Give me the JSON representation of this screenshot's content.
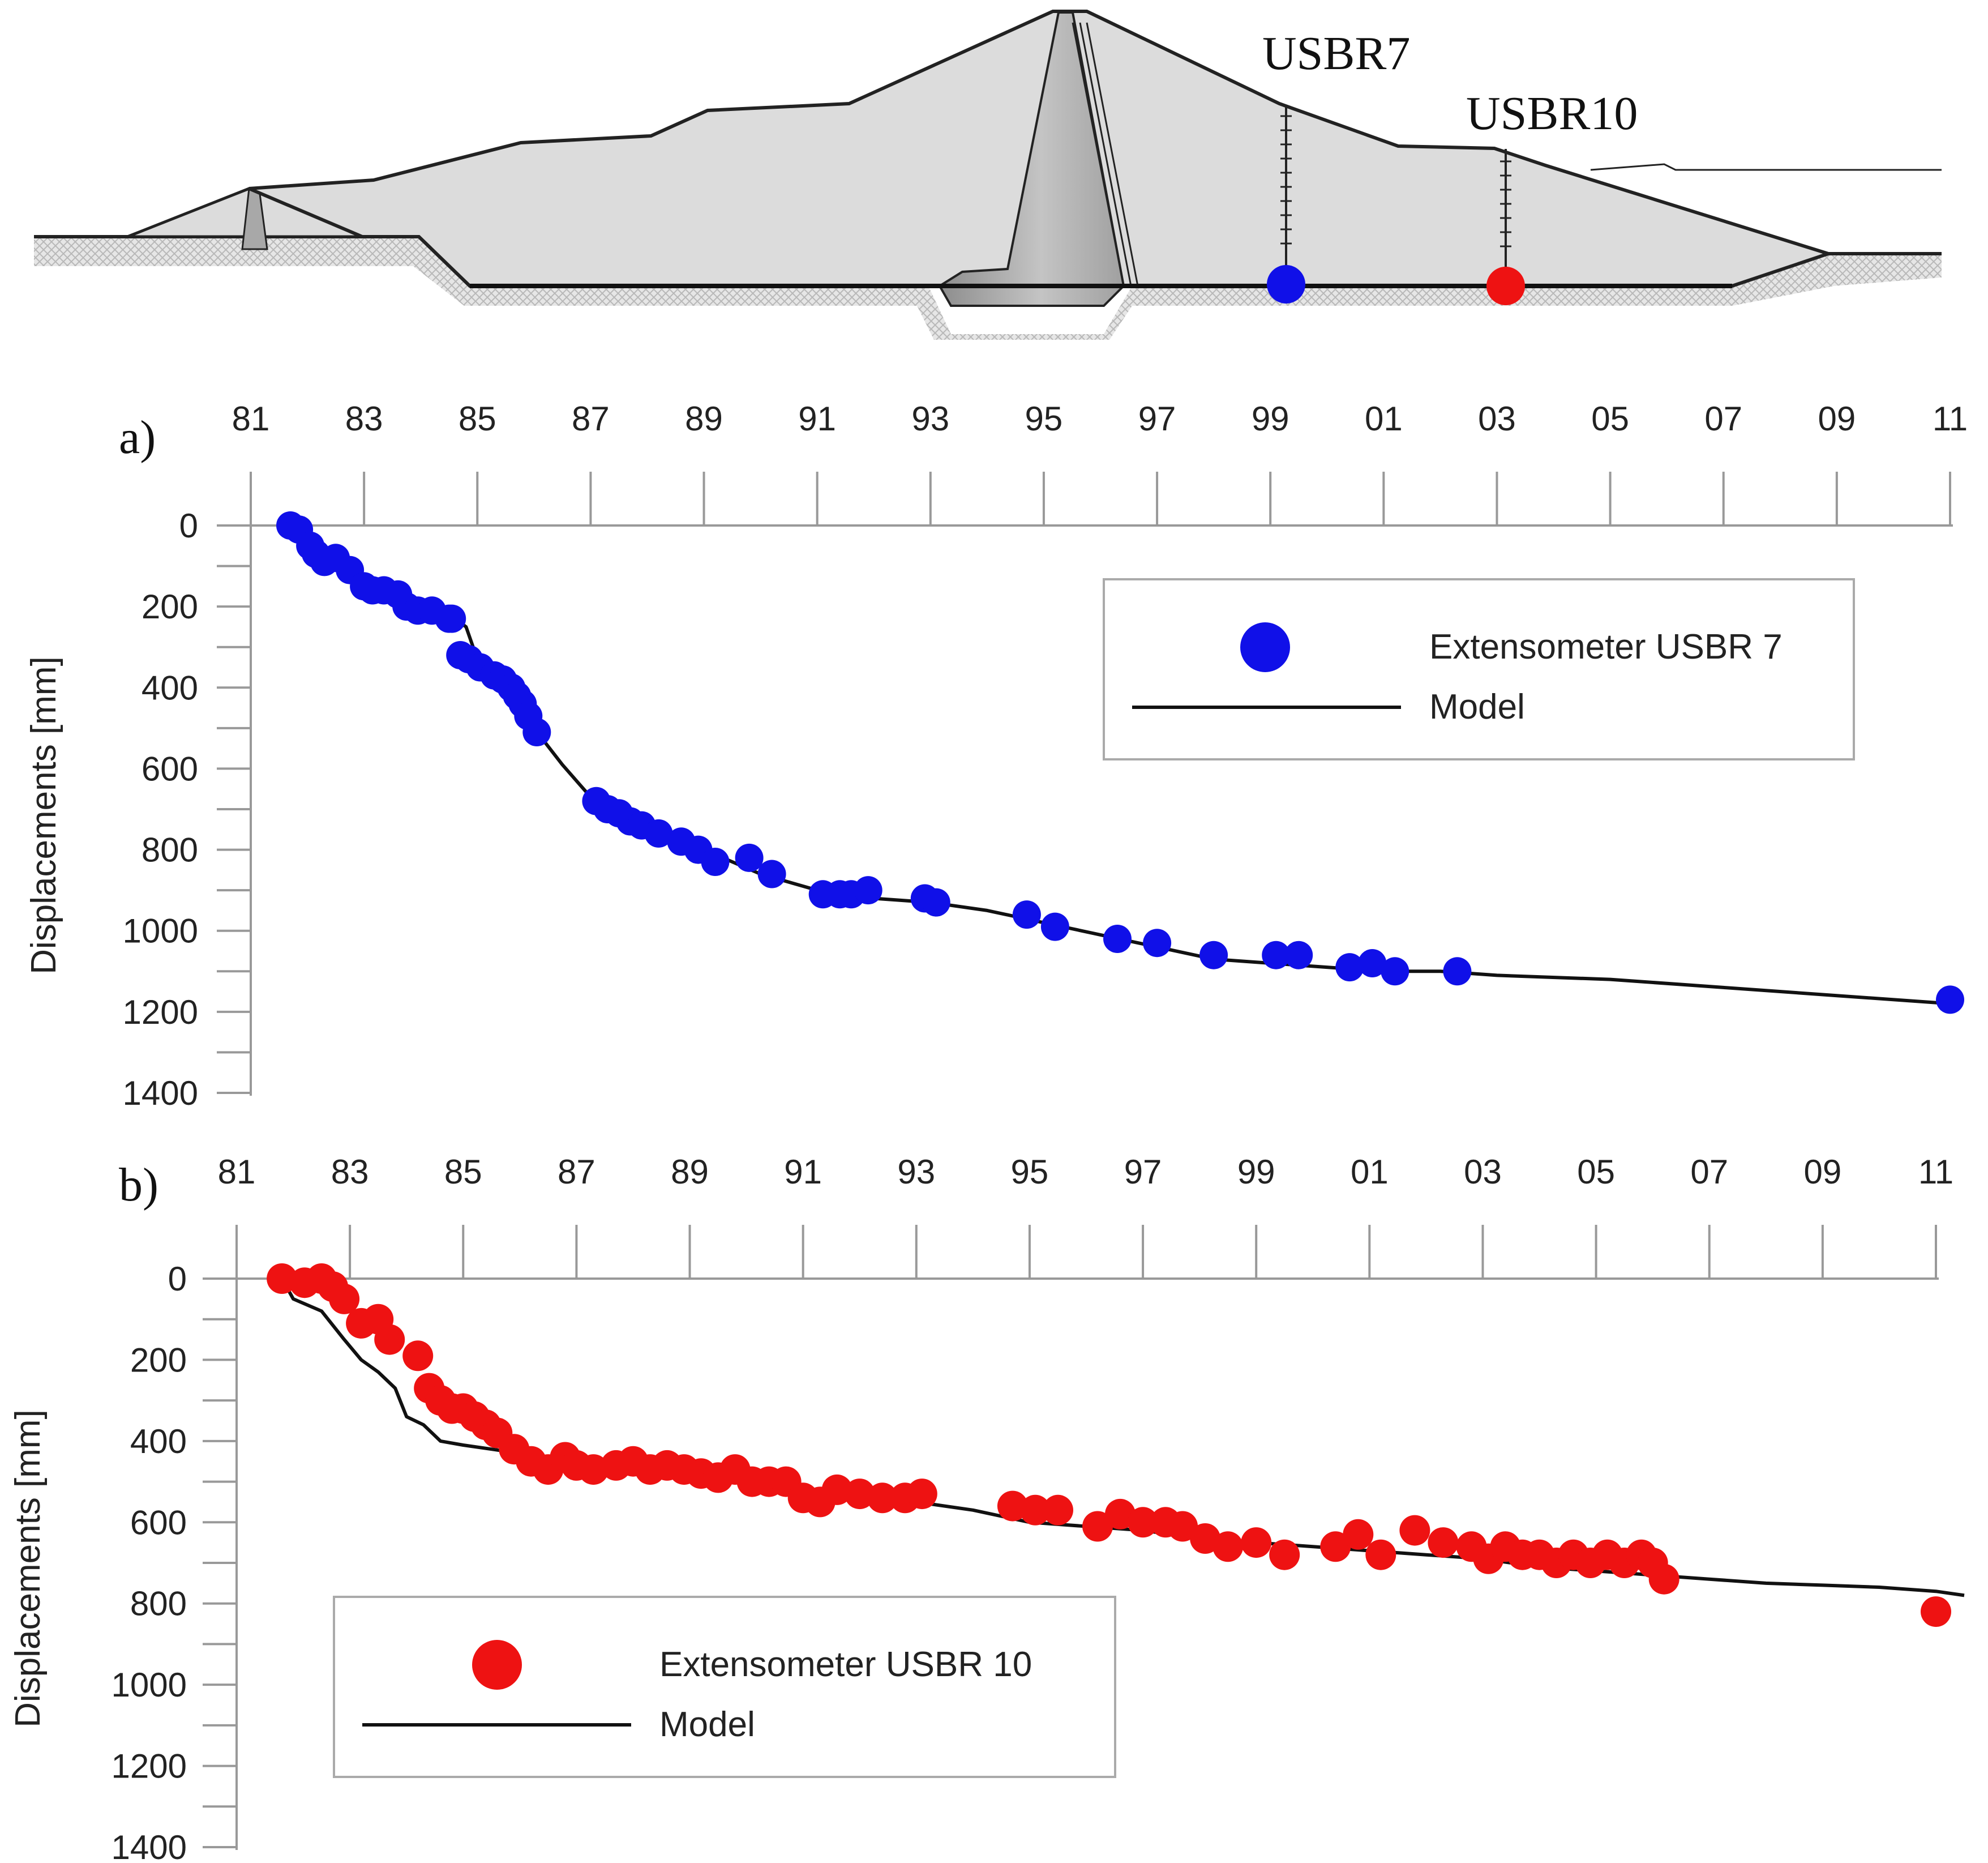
{
  "colors": {
    "usbr7": "#1010e8",
    "usbr10": "#ee1212",
    "model": "#111111",
    "axis": "#999999",
    "dam_fill": "#dcdcdc",
    "core_fill": "#a8a8a8"
  },
  "diagram": {
    "instrument_labels": [
      "USBR7",
      "USBR10"
    ]
  },
  "chart_data": [
    {
      "type": "scatter",
      "panel_label": "a)",
      "title": "",
      "ylabel": "Displacements [mm]",
      "xlabel": "",
      "xlim": [
        1981,
        2011
      ],
      "ylim": [
        0,
        1400
      ],
      "x_tick_labels": [
        "81",
        "83",
        "85",
        "87",
        "89",
        "91",
        "93",
        "95",
        "97",
        "99",
        "01",
        "03",
        "05",
        "07",
        "09",
        "11"
      ],
      "y_tick_labels": [
        "0",
        "200",
        "400",
        "600",
        "800",
        "1000",
        "1200",
        "1400"
      ],
      "legend": {
        "position": "top-right",
        "entries": [
          "Extensometer USBR 7",
          "Model"
        ]
      },
      "series": [
        {
          "name": "Extensometer USBR 7",
          "kind": "points",
          "x": [
            1981.7,
            1981.85,
            1982.05,
            1982.15,
            1982.3,
            1982.5,
            1982.75,
            1983.0,
            1983.15,
            1983.35,
            1983.6,
            1983.75,
            1983.95,
            1984.2,
            1984.5,
            1984.55,
            1984.7,
            1984.85,
            1985.05,
            1985.3,
            1985.45,
            1985.6,
            1985.7,
            1985.8,
            1985.9,
            1986.05,
            1987.1,
            1987.3,
            1987.5,
            1987.7,
            1987.9,
            1988.2,
            1988.6,
            1988.9,
            1989.2,
            1989.8,
            1990.2,
            1991.1,
            1991.4,
            1991.6,
            1991.9,
            1992.9,
            1993.1,
            1994.7,
            1995.2,
            1996.3,
            1997.0,
            1998.0,
            1999.1,
            1999.5,
            2000.4,
            2000.8,
            2001.2,
            2002.3,
            2011.0
          ],
          "y": [
            0,
            10,
            50,
            70,
            90,
            80,
            110,
            150,
            160,
            160,
            170,
            200,
            210,
            210,
            230,
            230,
            320,
            330,
            350,
            370,
            380,
            400,
            420,
            440,
            470,
            510,
            680,
            700,
            710,
            730,
            740,
            760,
            780,
            800,
            830,
            820,
            860,
            910,
            910,
            910,
            900,
            920,
            930,
            960,
            990,
            1020,
            1030,
            1060,
            1060,
            1060,
            1090,
            1080,
            1100,
            1100,
            1170
          ]
        },
        {
          "name": "Model",
          "kind": "line",
          "x": [
            1981.7,
            1982.0,
            1982.3,
            1982.7,
            1983.0,
            1983.5,
            1984.0,
            1984.5,
            1984.8,
            1985.0,
            1985.5,
            1986.0,
            1986.5,
            1987.0,
            1987.5,
            1988.0,
            1988.5,
            1989.0,
            1989.5,
            1990.0,
            1991.0,
            1992.0,
            1993.0,
            1994.0,
            1995.0,
            1996.0,
            1997.0,
            1998.0,
            1999.0,
            2000.0,
            2001.0,
            2002.0,
            2003.0,
            2005.0,
            2007.0,
            2009.0,
            2011.0
          ],
          "y": [
            0,
            40,
            70,
            100,
            130,
            160,
            200,
            220,
            250,
            330,
            400,
            500,
            590,
            670,
            710,
            740,
            770,
            800,
            830,
            860,
            900,
            920,
            930,
            950,
            980,
            1010,
            1040,
            1070,
            1080,
            1090,
            1100,
            1100,
            1110,
            1120,
            1140,
            1160,
            1180
          ]
        }
      ]
    },
    {
      "type": "scatter",
      "panel_label": "b)",
      "title": "",
      "ylabel": "Displacements [mm]",
      "xlabel": "",
      "xlim": [
        1981,
        2011
      ],
      "ylim": [
        0,
        1400
      ],
      "x_tick_labels": [
        "81",
        "83",
        "85",
        "87",
        "89",
        "91",
        "93",
        "95",
        "97",
        "99",
        "01",
        "03",
        "05",
        "07",
        "09",
        "11"
      ],
      "y_tick_labels": [
        "0",
        "200",
        "400",
        "600",
        "800",
        "1000",
        "1200",
        "1400"
      ],
      "legend": {
        "position": "bottom-left",
        "entries": [
          "Extensometer USBR 10",
          "Model"
        ]
      },
      "series": [
        {
          "name": "Extensometer USBR 10",
          "kind": "points",
          "x": [
            1981.8,
            1982.2,
            1982.5,
            1982.7,
            1982.9,
            1983.2,
            1983.5,
            1983.7,
            1984.2,
            1984.4,
            1984.6,
            1984.8,
            1985.0,
            1985.2,
            1985.4,
            1985.6,
            1985.9,
            1986.2,
            1986.5,
            1986.8,
            1987.0,
            1987.3,
            1987.7,
            1988.0,
            1988.3,
            1988.6,
            1988.9,
            1989.2,
            1989.5,
            1989.8,
            1990.1,
            1990.4,
            1990.7,
            1991.0,
            1991.3,
            1991.6,
            1992.0,
            1992.4,
            1992.8,
            1993.1,
            1994.7,
            1995.1,
            1995.5,
            1996.2,
            1996.6,
            1997.0,
            1997.4,
            1997.7,
            1998.1,
            1998.5,
            1999.0,
            1999.5,
            2000.4,
            2000.8,
            2001.2,
            2001.8,
            2002.3,
            2002.8,
            2003.1,
            2003.4,
            2003.7,
            2004.0,
            2004.3,
            2004.6,
            2004.9,
            2005.2,
            2005.5,
            2005.8,
            2006.0,
            2006.2,
            2011.0
          ],
          "y": [
            0,
            10,
            0,
            20,
            50,
            110,
            100,
            150,
            190,
            270,
            300,
            320,
            320,
            340,
            360,
            380,
            420,
            450,
            470,
            440,
            460,
            470,
            460,
            450,
            470,
            460,
            470,
            480,
            490,
            470,
            500,
            500,
            500,
            540,
            550,
            520,
            530,
            540,
            540,
            530,
            560,
            570,
            570,
            610,
            580,
            600,
            600,
            610,
            640,
            660,
            650,
            680,
            660,
            630,
            680,
            620,
            650,
            660,
            690,
            660,
            680,
            680,
            700,
            680,
            700,
            680,
            700,
            680,
            700,
            740,
            820
          ]
        },
        {
          "name": "Model",
          "kind": "line",
          "x": [
            1981.8,
            1982.0,
            1982.5,
            1982.9,
            1983.2,
            1983.5,
            1983.8,
            1984.0,
            1984.3,
            1984.6,
            1985.0,
            1985.5,
            1986.0,
            1986.5,
            1987.0,
            1988.0,
            1989.0,
            1990.0,
            1991.0,
            1992.0,
            1993.0,
            1994.0,
            1995.0,
            1996.0,
            1997.0,
            1998.0,
            1999.0,
            2000.0,
            2001.0,
            2002.0,
            2003.0,
            2004.0,
            2005.0,
            2006.0,
            2007.0,
            2008.0,
            2009.0,
            2010.0,
            2011.0,
            2011.5
          ],
          "y": [
            0,
            50,
            80,
            150,
            200,
            230,
            270,
            340,
            360,
            400,
            410,
            420,
            430,
            440,
            450,
            460,
            480,
            500,
            520,
            540,
            550,
            570,
            600,
            610,
            620,
            640,
            650,
            660,
            670,
            680,
            690,
            710,
            720,
            730,
            740,
            750,
            755,
            760,
            770,
            780
          ]
        }
      ]
    }
  ]
}
